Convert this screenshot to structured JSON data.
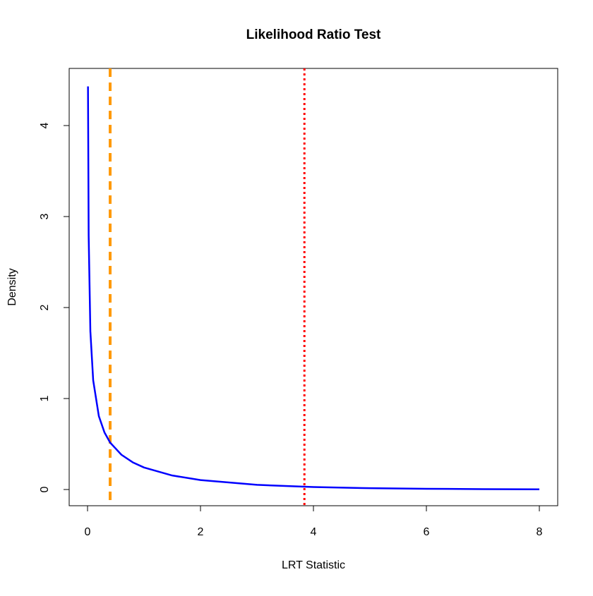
{
  "chart_data": {
    "type": "line",
    "title": "Likelihood Ratio Test",
    "x_label": "LRT Statistic",
    "y_label": "Density",
    "x": [
      0.008,
      0.02,
      0.05,
      0.1,
      0.2,
      0.3,
      0.4,
      0.6,
      0.8,
      1,
      1.5,
      2,
      3,
      4,
      5,
      6,
      7,
      8
    ],
    "series": [
      {
        "color": "#0000ff",
        "values": [
          4.43,
          2.79,
          1.74,
          1.2,
          0.807,
          0.627,
          0.516,
          0.382,
          0.299,
          0.242,
          0.154,
          0.104,
          0.0514,
          0.027,
          0.0146,
          0.0081,
          0.0046,
          0.0026
        ]
      }
    ],
    "vlines": [
      {
        "x": 0.4,
        "color": "#ff9900",
        "style": "dashed"
      },
      {
        "x": 3.84,
        "color": "#ff0000",
        "style": "dotted"
      }
    ],
    "xlim": [
      -0.325,
      8.325
    ],
    "ylim": [
      -0.178,
      4.628
    ],
    "xticks": [
      0,
      2,
      4,
      6,
      8
    ],
    "yticks": [
      0,
      1,
      2,
      3,
      4
    ],
    "grid": false
  }
}
